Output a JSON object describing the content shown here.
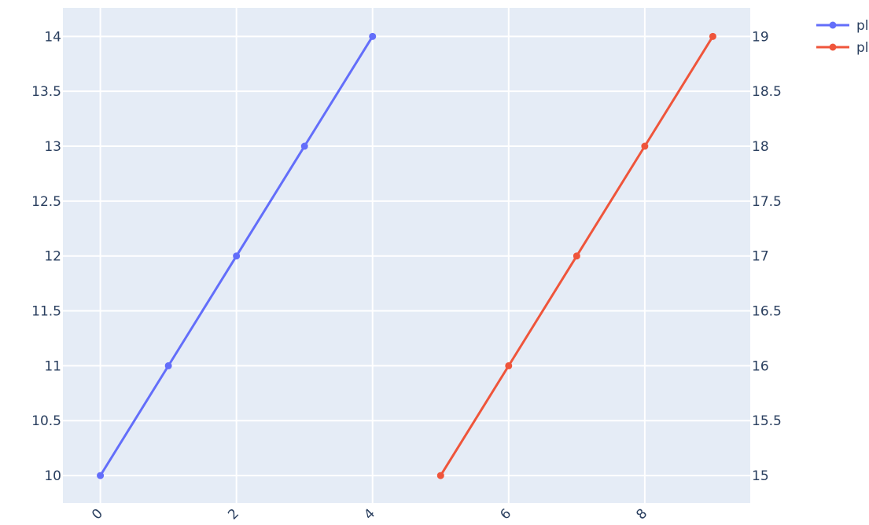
{
  "chart_data": {
    "type": "line",
    "x_ticks": [
      "0",
      "2",
      "4",
      "6",
      "8"
    ],
    "y_left_ticks": [
      "10",
      "10.5",
      "11",
      "11.5",
      "12",
      "12.5",
      "13",
      "13.5",
      "14"
    ],
    "y_right_ticks": [
      "15",
      "15.5",
      "16",
      "16.5",
      "17",
      "17.5",
      "18",
      "18.5",
      "19"
    ],
    "xlim": [
      -0.55,
      9.55
    ],
    "ylim_left": [
      9.75,
      14.26
    ],
    "ylim_right": [
      14.75,
      19.26
    ],
    "grid": true,
    "legend_position": "top-right",
    "series": [
      {
        "name": "pl",
        "axis": "left",
        "color": "#636efa",
        "x": [
          0,
          1,
          2,
          3,
          4
        ],
        "y": [
          10,
          11,
          12,
          13,
          14
        ]
      },
      {
        "name": "pl",
        "axis": "right",
        "color": "#ef553b",
        "x": [
          5,
          6,
          7,
          8,
          9
        ],
        "y": [
          15,
          16,
          17,
          18,
          19
        ]
      }
    ]
  },
  "colors": {
    "plot_background": "#e5ecf6",
    "grid": "#ffffff",
    "text": "#2a3f5f"
  }
}
